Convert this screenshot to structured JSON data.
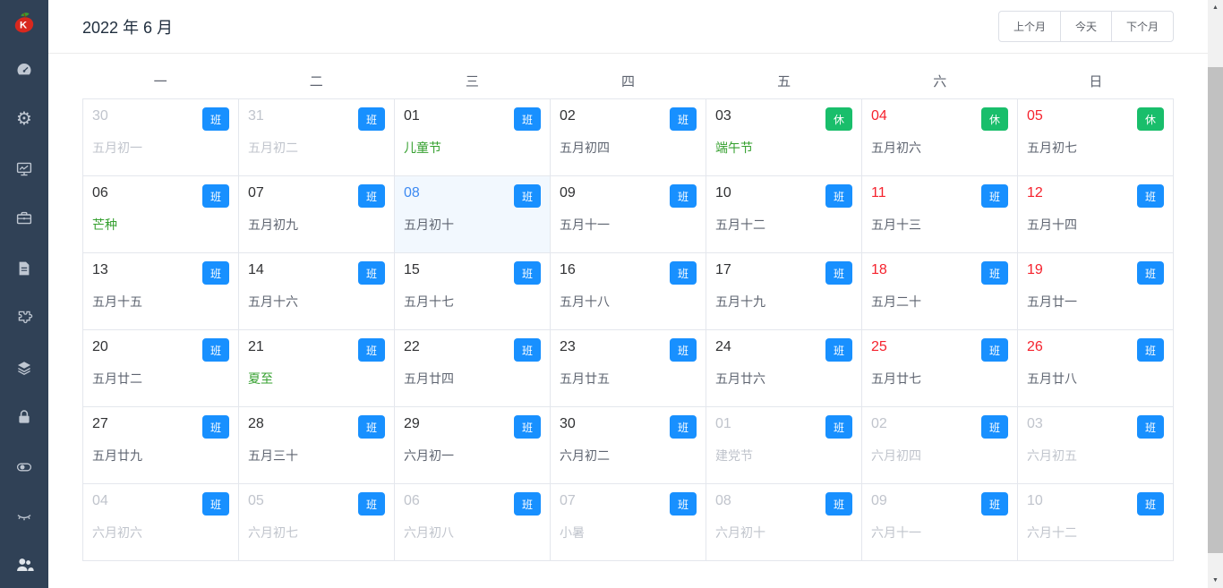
{
  "sidebar": {
    "icons": [
      "dashboard-icon",
      "settings-icon",
      "monitor-icon",
      "briefcase-icon",
      "document-icon",
      "puzzle-icon",
      "layers-icon",
      "lock-icon",
      "toggle-icon",
      "eye-closed-icon"
    ],
    "bottom_icon": "users-icon",
    "logo": "app-logo"
  },
  "header": {
    "title": "2022 年 6 月",
    "buttons": {
      "prev": "上个月",
      "today": "今天",
      "next": "下个月"
    }
  },
  "calendar": {
    "weekdays": [
      "一",
      "二",
      "三",
      "四",
      "五",
      "六",
      "日"
    ],
    "badge_legend": {
      "work": "班",
      "rest": "休"
    },
    "cells": [
      {
        "day": "30",
        "lunar": "五月初一",
        "badge": "班",
        "day_state": "dim",
        "lunar_state": "dim"
      },
      {
        "day": "31",
        "lunar": "五月初二",
        "badge": "班",
        "day_state": "dim",
        "lunar_state": "dim"
      },
      {
        "day": "01",
        "lunar": "儿童节",
        "badge": "班",
        "day_state": "normal",
        "lunar_state": "festival"
      },
      {
        "day": "02",
        "lunar": "五月初四",
        "badge": "班",
        "day_state": "normal",
        "lunar_state": "normal"
      },
      {
        "day": "03",
        "lunar": "端午节",
        "badge": "休",
        "day_state": "normal",
        "lunar_state": "festival"
      },
      {
        "day": "04",
        "lunar": "五月初六",
        "badge": "休",
        "day_state": "weekend",
        "lunar_state": "normal"
      },
      {
        "day": "05",
        "lunar": "五月初七",
        "badge": "休",
        "day_state": "weekend",
        "lunar_state": "normal"
      },
      {
        "day": "06",
        "lunar": "芒种",
        "badge": "班",
        "day_state": "normal",
        "lunar_state": "festival"
      },
      {
        "day": "07",
        "lunar": "五月初九",
        "badge": "班",
        "day_state": "normal",
        "lunar_state": "normal"
      },
      {
        "day": "08",
        "lunar": "五月初十",
        "badge": "班",
        "day_state": "today",
        "lunar_state": "normal"
      },
      {
        "day": "09",
        "lunar": "五月十一",
        "badge": "班",
        "day_state": "normal",
        "lunar_state": "normal"
      },
      {
        "day": "10",
        "lunar": "五月十二",
        "badge": "班",
        "day_state": "normal",
        "lunar_state": "normal"
      },
      {
        "day": "11",
        "lunar": "五月十三",
        "badge": "班",
        "day_state": "weekend",
        "lunar_state": "normal"
      },
      {
        "day": "12",
        "lunar": "五月十四",
        "badge": "班",
        "day_state": "weekend",
        "lunar_state": "normal"
      },
      {
        "day": "13",
        "lunar": "五月十五",
        "badge": "班",
        "day_state": "normal",
        "lunar_state": "normal"
      },
      {
        "day": "14",
        "lunar": "五月十六",
        "badge": "班",
        "day_state": "normal",
        "lunar_state": "normal"
      },
      {
        "day": "15",
        "lunar": "五月十七",
        "badge": "班",
        "day_state": "normal",
        "lunar_state": "normal"
      },
      {
        "day": "16",
        "lunar": "五月十八",
        "badge": "班",
        "day_state": "normal",
        "lunar_state": "normal"
      },
      {
        "day": "17",
        "lunar": "五月十九",
        "badge": "班",
        "day_state": "normal",
        "lunar_state": "normal"
      },
      {
        "day": "18",
        "lunar": "五月二十",
        "badge": "班",
        "day_state": "weekend",
        "lunar_state": "normal"
      },
      {
        "day": "19",
        "lunar": "五月廿一",
        "badge": "班",
        "day_state": "weekend",
        "lunar_state": "normal"
      },
      {
        "day": "20",
        "lunar": "五月廿二",
        "badge": "班",
        "day_state": "normal",
        "lunar_state": "normal"
      },
      {
        "day": "21",
        "lunar": "夏至",
        "badge": "班",
        "day_state": "normal",
        "lunar_state": "festival"
      },
      {
        "day": "22",
        "lunar": "五月廿四",
        "badge": "班",
        "day_state": "normal",
        "lunar_state": "normal"
      },
      {
        "day": "23",
        "lunar": "五月廿五",
        "badge": "班",
        "day_state": "normal",
        "lunar_state": "normal"
      },
      {
        "day": "24",
        "lunar": "五月廿六",
        "badge": "班",
        "day_state": "normal",
        "lunar_state": "normal"
      },
      {
        "day": "25",
        "lunar": "五月廿七",
        "badge": "班",
        "day_state": "weekend",
        "lunar_state": "normal"
      },
      {
        "day": "26",
        "lunar": "五月廿八",
        "badge": "班",
        "day_state": "weekend",
        "lunar_state": "normal"
      },
      {
        "day": "27",
        "lunar": "五月廿九",
        "badge": "班",
        "day_state": "normal",
        "lunar_state": "normal"
      },
      {
        "day": "28",
        "lunar": "五月三十",
        "badge": "班",
        "day_state": "normal",
        "lunar_state": "normal"
      },
      {
        "day": "29",
        "lunar": "六月初一",
        "badge": "班",
        "day_state": "normal",
        "lunar_state": "normal"
      },
      {
        "day": "30",
        "lunar": "六月初二",
        "badge": "班",
        "day_state": "normal",
        "lunar_state": "normal"
      },
      {
        "day": "01",
        "lunar": "建党节",
        "badge": "班",
        "day_state": "dim",
        "lunar_state": "dim"
      },
      {
        "day": "02",
        "lunar": "六月初四",
        "badge": "班",
        "day_state": "dim",
        "lunar_state": "dim"
      },
      {
        "day": "03",
        "lunar": "六月初五",
        "badge": "班",
        "day_state": "dim",
        "lunar_state": "dim"
      },
      {
        "day": "04",
        "lunar": "六月初六",
        "badge": "班",
        "day_state": "dim",
        "lunar_state": "dim"
      },
      {
        "day": "05",
        "lunar": "六月初七",
        "badge": "班",
        "day_state": "dim",
        "lunar_state": "dim"
      },
      {
        "day": "06",
        "lunar": "六月初八",
        "badge": "班",
        "day_state": "dim",
        "lunar_state": "dim"
      },
      {
        "day": "07",
        "lunar": "小暑",
        "badge": "班",
        "day_state": "dim",
        "lunar_state": "dim"
      },
      {
        "day": "08",
        "lunar": "六月初十",
        "badge": "班",
        "day_state": "dim",
        "lunar_state": "dim"
      },
      {
        "day": "09",
        "lunar": "六月十一",
        "badge": "班",
        "day_state": "dim",
        "lunar_state": "dim"
      },
      {
        "day": "10",
        "lunar": "六月十二",
        "badge": "班",
        "day_state": "dim",
        "lunar_state": "dim"
      }
    ]
  },
  "scrollbar": {
    "up": "▲",
    "down": "▼"
  },
  "colors": {
    "work_badge": "#1890ff",
    "rest_badge": "#19be6b",
    "weekend_red": "#f5222d",
    "festival_green": "#35a02f",
    "today_blue": "#3d8af2",
    "today_cell_bg": "#f2f8fe",
    "sidebar_bg": "#304156",
    "grid_border": "#e4e7ed"
  }
}
